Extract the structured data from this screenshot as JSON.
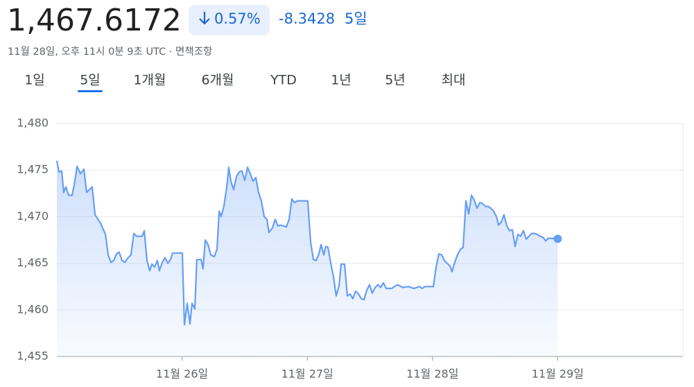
{
  "header": {
    "price": "1,467.6172",
    "change_pct": "0.57%",
    "change_abs": "-8.3428",
    "period": "5일",
    "timestamp": "11월 28일, 오후 11시 0분 9초 UTC · 면책조항"
  },
  "tabs": {
    "items": [
      "1일",
      "5일",
      "1개월",
      "6개월",
      "YTD",
      "1년",
      "5년",
      "최대"
    ],
    "selected": 1
  },
  "chart_data": {
    "type": "line",
    "xlim": [
      0,
      5
    ],
    "xticks": [
      {
        "value": 1,
        "label": "11월 26일"
      },
      {
        "value": 2,
        "label": "11월 27일"
      },
      {
        "value": 3,
        "label": "11월 28일"
      },
      {
        "value": 4,
        "label": "11월 29일"
      }
    ],
    "ylim": [
      1455,
      1480
    ],
    "yticks": [
      {
        "value": 1455,
        "label": "1,455"
      },
      {
        "value": 1460,
        "label": "1,460"
      },
      {
        "value": 1465,
        "label": "1,465"
      },
      {
        "value": 1470,
        "label": "1,470"
      },
      {
        "value": 1475,
        "label": "1,475"
      },
      {
        "value": 1480,
        "label": "1,480"
      }
    ],
    "grid": true,
    "x": [
      0,
      0.017,
      0.039,
      0.055,
      0.072,
      0.094,
      0.122,
      0.144,
      0.161,
      0.188,
      0.216,
      0.238,
      0.282,
      0.305,
      0.349,
      0.388,
      0.41,
      0.432,
      0.454,
      0.476,
      0.498,
      0.52,
      0.543,
      0.57,
      0.592,
      0.615,
      0.637,
      0.681,
      0.698,
      0.72,
      0.742,
      0.759,
      0.781,
      0.803,
      0.819,
      0.842,
      0.864,
      0.886,
      0.908,
      0.925,
      0.947,
      1.002,
      1.019,
      1.041,
      1.063,
      1.08,
      1.102,
      1.118,
      1.152,
      1.168,
      1.185,
      1.207,
      1.229,
      1.257,
      1.279,
      1.296,
      1.312,
      1.334,
      1.357,
      1.373,
      1.39,
      1.412,
      1.434,
      1.456,
      1.478,
      1.501,
      1.523,
      1.545,
      1.567,
      1.589,
      1.611,
      1.633,
      1.656,
      1.678,
      1.694,
      1.722,
      1.744,
      1.766,
      1.788,
      1.833,
      1.855,
      1.877,
      1.899,
      1.921,
      2.004,
      2.027,
      2.049,
      2.071,
      2.093,
      2.11,
      2.132,
      2.148,
      2.165,
      2.193,
      2.209,
      2.231,
      2.254,
      2.27,
      2.298,
      2.32,
      2.342,
      2.364,
      2.386,
      2.409,
      2.431,
      2.453,
      2.475,
      2.497,
      2.519,
      2.542,
      2.564,
      2.586,
      2.608,
      2.63,
      2.674,
      2.719,
      2.763,
      2.807,
      2.852,
      2.896,
      2.918,
      2.94,
      3.007,
      3.029,
      3.051,
      3.073,
      3.095,
      3.117,
      3.14,
      3.156,
      3.178,
      3.2,
      3.223,
      3.245,
      3.267,
      3.289,
      3.311,
      3.333,
      3.355,
      3.378,
      3.4,
      3.422,
      3.444,
      3.466,
      3.488,
      3.511,
      3.527,
      3.549,
      3.571,
      3.594,
      3.616,
      3.638,
      3.66,
      3.682,
      3.704,
      3.726,
      3.749,
      3.771,
      3.793,
      3.815,
      3.837,
      3.859,
      3.882,
      3.904,
      3.926,
      4.0
    ],
    "series": [
      {
        "color": "#669df6",
        "values": [
          1476.0,
          1474.8,
          1474.9,
          1472.6,
          1473.2,
          1472.3,
          1472.3,
          1473.8,
          1475.4,
          1474.6,
          1475.1,
          1472.6,
          1473.2,
          1470.2,
          1469.3,
          1468.1,
          1465.9,
          1465.1,
          1465.3,
          1466.0,
          1466.2,
          1465.3,
          1465.1,
          1465.6,
          1465.9,
          1468.2,
          1467.9,
          1467.9,
          1468.5,
          1465.3,
          1464.2,
          1464.9,
          1464.6,
          1465.3,
          1464.2,
          1465.1,
          1465.6,
          1465.0,
          1465.4,
          1466.1,
          1466.1,
          1466.1,
          1458.4,
          1460.7,
          1458.5,
          1460.7,
          1460.1,
          1465.4,
          1465.4,
          1464.4,
          1467.5,
          1467.0,
          1465.9,
          1465.7,
          1466.5,
          1470.6,
          1470.0,
          1471.1,
          1473.2,
          1475.3,
          1473.8,
          1472.9,
          1474.3,
          1474.8,
          1474.9,
          1473.9,
          1475.3,
          1474.6,
          1473.8,
          1474.2,
          1472.6,
          1471.7,
          1470.0,
          1469.7,
          1468.3,
          1468.8,
          1469.7,
          1469.0,
          1469.1,
          1468.9,
          1469.7,
          1471.9,
          1471.5,
          1471.7,
          1471.7,
          1467.2,
          1465.4,
          1465.3,
          1466.0,
          1467.0,
          1465.9,
          1466.8,
          1466.7,
          1464.6,
          1463.6,
          1461.5,
          1462.6,
          1464.9,
          1464.9,
          1461.5,
          1461.7,
          1461.2,
          1462.0,
          1461.7,
          1461.2,
          1461.1,
          1462.1,
          1462.7,
          1461.8,
          1462.4,
          1462.7,
          1462.4,
          1462.9,
          1462.3,
          1462.3,
          1462.7,
          1462.4,
          1462.5,
          1462.3,
          1462.5,
          1462.3,
          1462.5,
          1462.5,
          1464.6,
          1466.0,
          1465.9,
          1465.3,
          1465.0,
          1464.7,
          1464.1,
          1465.1,
          1465.9,
          1466.5,
          1466.7,
          1471.7,
          1470.3,
          1472.3,
          1471.8,
          1470.9,
          1471.5,
          1471.4,
          1471.1,
          1471.1,
          1470.9,
          1470.6,
          1470.0,
          1469.1,
          1469.4,
          1470.2,
          1469.0,
          1468.5,
          1468.6,
          1466.8,
          1468.1,
          1467.9,
          1468.5,
          1467.6,
          1467.9,
          1468.2,
          1468.2,
          1468.1,
          1467.9,
          1467.8,
          1467.4,
          1467.7,
          1467.6172
        ]
      }
    ]
  }
}
